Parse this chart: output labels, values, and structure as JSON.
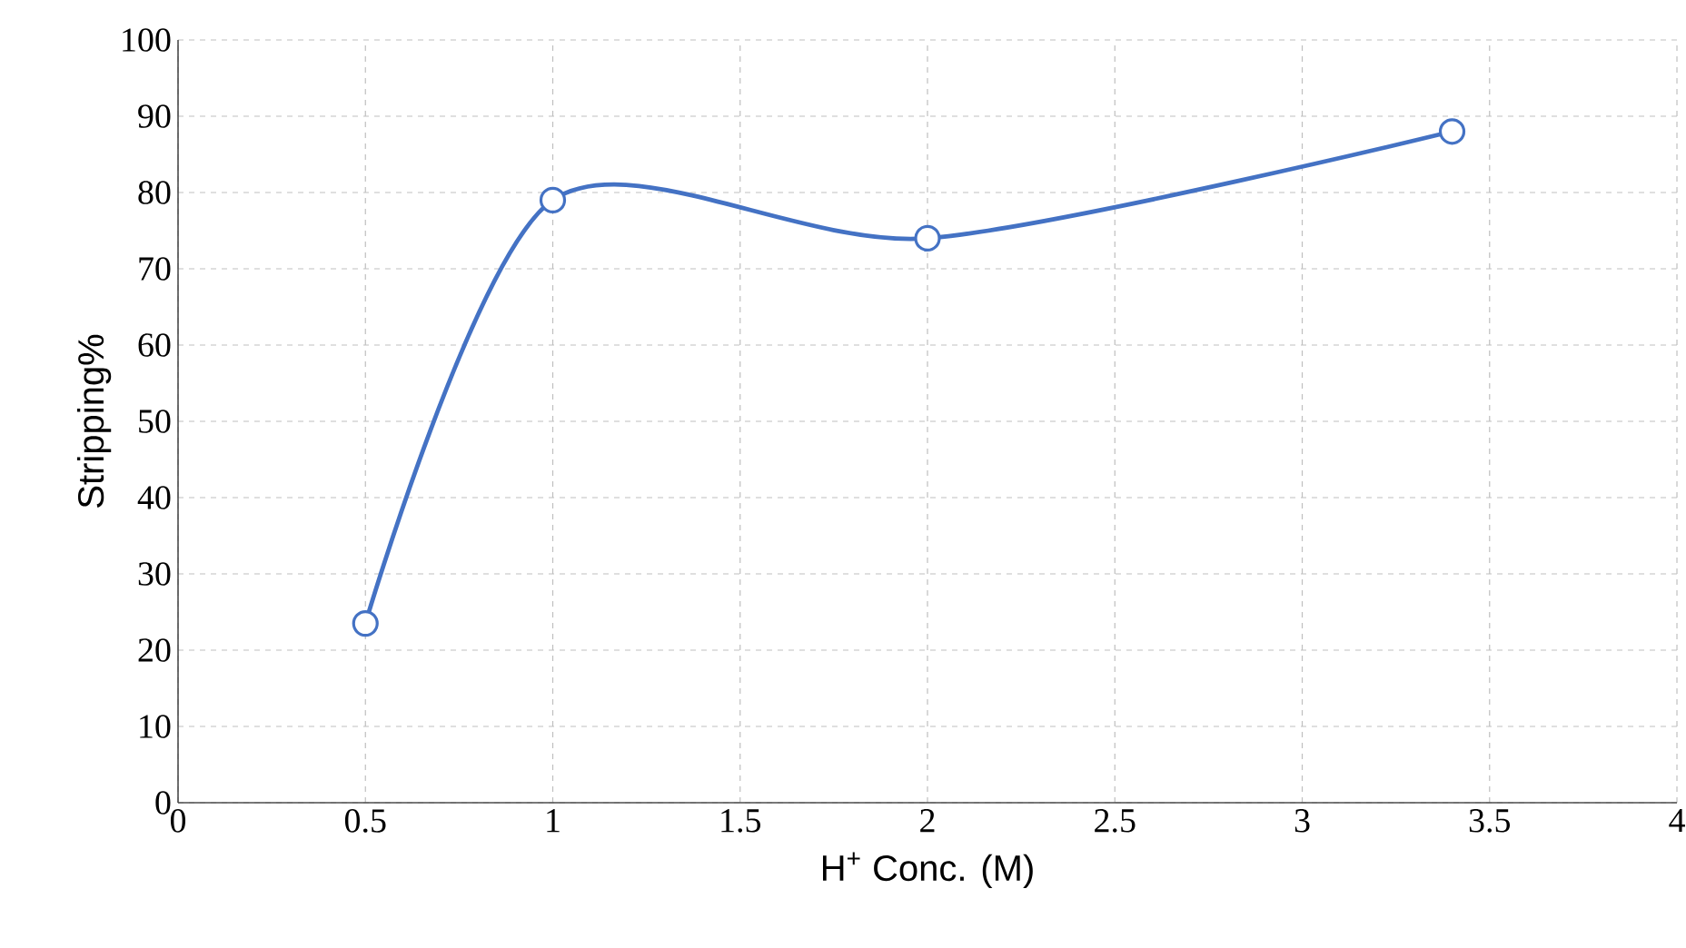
{
  "chart_data": {
    "type": "line",
    "xlabel": "H$^{+}$ Conc. (M)",
    "ylabel": "Stripping%",
    "x": [
      0.5,
      1,
      2,
      3.4
    ],
    "series": [
      {
        "color": "#4472c4",
        "values": [
          23.5,
          79,
          74,
          88
        ]
      }
    ],
    "xlim": [
      0,
      4
    ],
    "xticks": [
      0,
      0.5,
      1,
      1.5,
      2,
      2.5,
      3,
      3.5,
      4
    ],
    "ylim": [
      0,
      100
    ],
    "yticks": [
      0,
      10,
      20,
      30,
      40,
      50,
      60,
      70,
      80,
      90,
      100
    ],
    "grid": true,
    "marker": "circle",
    "line_style": "solid"
  }
}
